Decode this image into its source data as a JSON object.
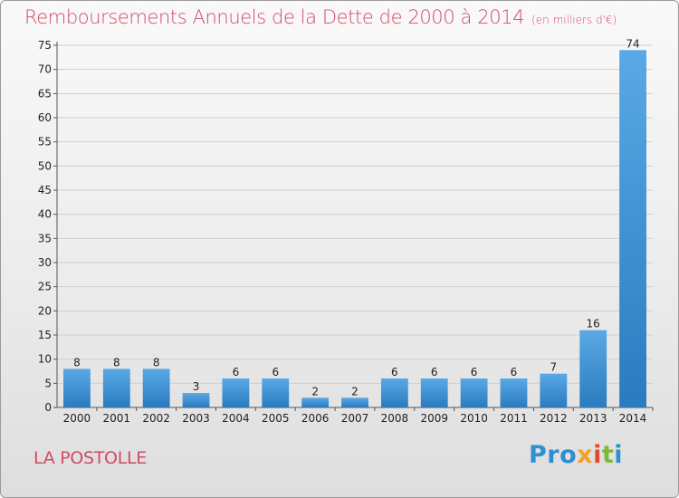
{
  "header": {
    "title": "Remboursements Annuels de la Dette de 2000 à 2014",
    "unit": "(en milliers d'€)"
  },
  "commune": "LA POSTOLLE",
  "logo": {
    "letters": [
      "Pro",
      "x",
      "i",
      "t",
      "i"
    ]
  },
  "colors": {
    "title": "#d14b66",
    "bar_top": "#5aa9e6",
    "bar_bottom": "#2a7bbf",
    "grid": "#cfcfcf"
  },
  "chart_data": {
    "type": "bar",
    "title": "Remboursements Annuels de la Dette de 2000 à 2014",
    "unit": "(en milliers d'€)",
    "categories": [
      "2000",
      "2001",
      "2002",
      "2003",
      "2004",
      "2005",
      "2006",
      "2007",
      "2008",
      "2009",
      "2010",
      "2011",
      "2012",
      "2013",
      "2014"
    ],
    "values": [
      8,
      8,
      8,
      3,
      6,
      6,
      2,
      2,
      6,
      6,
      6,
      6,
      7,
      16,
      74
    ],
    "value_labels": [
      "8",
      "8",
      "8",
      "3",
      "6",
      "6",
      "2",
      "2",
      "6",
      "6",
      "6",
      "6",
      "7",
      "16",
      "74"
    ],
    "yticks": [
      "0",
      "5",
      "10",
      "15",
      "20",
      "25",
      "30",
      "35",
      "40",
      "45",
      "50",
      "55",
      "60",
      "65",
      "70",
      "75"
    ],
    "ylim": [
      0,
      75
    ],
    "grid": true
  }
}
